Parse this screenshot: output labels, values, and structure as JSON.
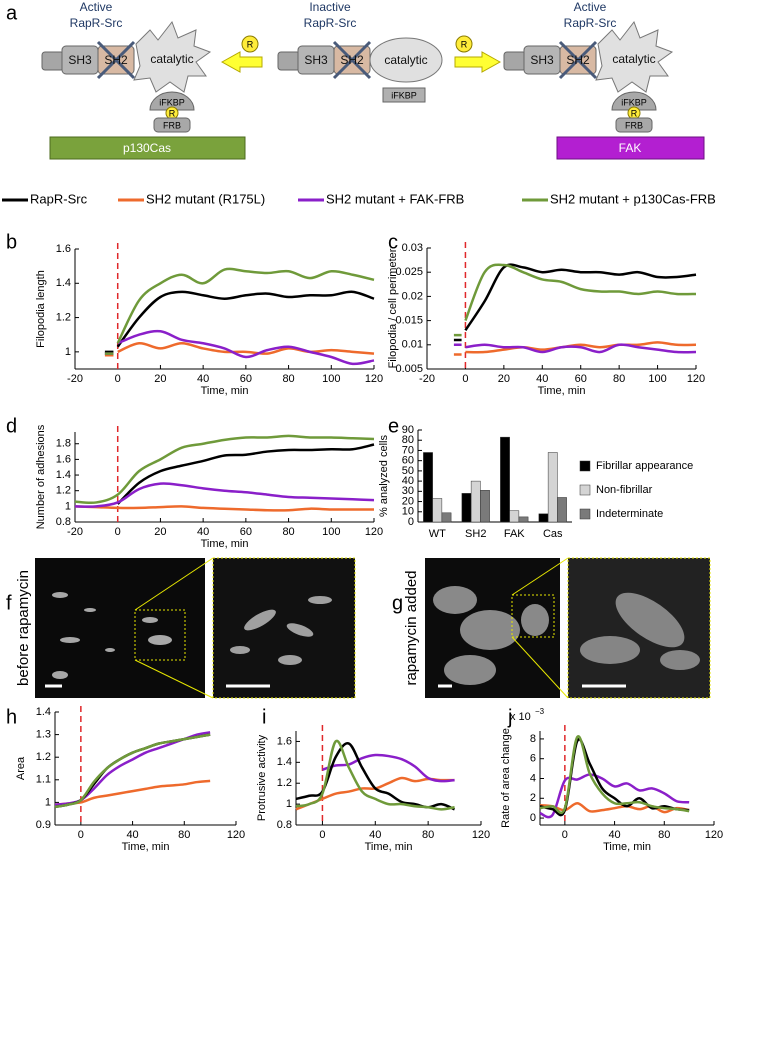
{
  "panels": [
    "a",
    "b",
    "c",
    "d",
    "e",
    "f",
    "g",
    "h",
    "i",
    "j"
  ],
  "diagram": {
    "left": {
      "title": [
        "Active",
        "RapR-Src"
      ],
      "domains": [
        "SH3",
        "SH2",
        "catalytic"
      ],
      "ifkbp": "iFKBP",
      "r": "R",
      "frb": "FRB",
      "target": "p130Cas"
    },
    "arrow_left_r": "R",
    "middle": {
      "title": [
        "Inactive",
        "RapR-Src"
      ],
      "domains": [
        "SH3",
        "SH2",
        "catalytic"
      ],
      "ifkbp": "iFKBP"
    },
    "arrow_right_r": "R",
    "right": {
      "title": [
        "Active",
        "RapR-Src"
      ],
      "domains": [
        "SH3",
        "SH2",
        "catalytic"
      ],
      "ifkbp": "iFKBP",
      "r": "R",
      "frb": "FRB",
      "target": "FAK"
    }
  },
  "legend": [
    {
      "name": "RapR-Src",
      "color": "#000000"
    },
    {
      "name": "SH2 mutant (R175L)",
      "color": "#ee6a2c"
    },
    {
      "name": "SH2 mutant + FAK-FRB",
      "color": "#8a1fc9"
    },
    {
      "name": "SH2 mutant + p130Cas-FRB",
      "color": "#6f9a3a"
    }
  ],
  "images": {
    "f": "before rapamycin",
    "g": "rapamycin added"
  },
  "chart_data": [
    {
      "type": "line",
      "xlabel": "Time, min",
      "ylabel": "Filopodia length",
      "vline": 0,
      "xlim": [
        -20,
        120
      ],
      "xticks": [
        -20,
        0,
        20,
        40,
        60,
        80,
        100,
        120
      ],
      "ylim": [
        0.9,
        1.6
      ],
      "yticks": [
        1,
        1.2,
        1.4,
        1.6
      ],
      "x": [
        -6,
        -2,
        -1,
        0,
        10,
        20,
        30,
        40,
        50,
        60,
        70,
        80,
        90,
        100,
        110,
        120
      ],
      "series": [
        {
          "color": "#000000",
          "values": [
            1.0,
            1.0,
            null,
            1.03,
            1.2,
            1.32,
            1.35,
            1.33,
            1.31,
            1.33,
            1.34,
            1.32,
            1.33,
            1.33,
            1.35,
            1.31
          ]
        },
        {
          "color": "#ee6a2c",
          "values": [
            0.98,
            0.98,
            null,
            1.0,
            1.05,
            1.02,
            1.05,
            1.02,
            1.0,
            1.0,
            0.99,
            1.02,
            1.0,
            1.01,
            1.0,
            0.99
          ]
        },
        {
          "color": "#8a1fc9",
          "values": [
            0.99,
            0.99,
            null,
            1.05,
            1.1,
            1.12,
            1.07,
            1.05,
            1.02,
            0.97,
            1.01,
            1.03,
            1.0,
            0.97,
            0.93,
            0.95
          ]
        },
        {
          "color": "#6f9a3a",
          "values": [
            0.99,
            0.99,
            null,
            1.05,
            1.3,
            1.4,
            1.45,
            1.4,
            1.48,
            1.47,
            1.46,
            1.47,
            1.43,
            1.47,
            1.45,
            1.42
          ]
        }
      ]
    },
    {
      "type": "line",
      "xlabel": "Time, min",
      "ylabel": "Filopodia / cell perimeter",
      "vline": 0,
      "xlim": [
        -20,
        120
      ],
      "xticks": [
        -20,
        0,
        20,
        40,
        60,
        80,
        100,
        120
      ],
      "ylim": [
        0.005,
        0.03
      ],
      "yticks": [
        0.005,
        0.01,
        0.015,
        0.02,
        0.025,
        0.03
      ],
      "x": [
        -6,
        -2,
        -1,
        0,
        10,
        20,
        30,
        40,
        50,
        60,
        70,
        80,
        90,
        100,
        110,
        120
      ],
      "series": [
        {
          "color": "#000000",
          "values": [
            0.011,
            0.011,
            null,
            0.013,
            0.019,
            0.026,
            0.026,
            0.025,
            0.0255,
            0.025,
            0.025,
            0.0245,
            0.025,
            0.024,
            0.024,
            0.0245
          ]
        },
        {
          "color": "#ee6a2c",
          "values": [
            0.008,
            0.008,
            null,
            0.0085,
            0.0085,
            0.009,
            0.0095,
            0.009,
            0.0095,
            0.01,
            0.0095,
            0.01,
            0.01,
            0.0105,
            0.01,
            0.01
          ]
        },
        {
          "color": "#8a1fc9",
          "values": [
            0.01,
            0.01,
            null,
            0.0095,
            0.01,
            0.0095,
            0.0095,
            0.0085,
            0.0095,
            0.0095,
            0.0085,
            0.01,
            0.0095,
            0.009,
            0.0085,
            0.0085
          ]
        },
        {
          "color": "#6f9a3a",
          "values": [
            0.012,
            0.012,
            null,
            0.015,
            0.025,
            0.0265,
            0.025,
            0.0235,
            0.023,
            0.0215,
            0.021,
            0.021,
            0.0205,
            0.021,
            0.0205,
            0.0205
          ]
        }
      ]
    },
    {
      "type": "line",
      "xlabel": "Time, min",
      "ylabel": "Number of adhesions",
      "vline": 0,
      "xlim": [
        -20,
        120
      ],
      "xticks": [
        -20,
        0,
        20,
        40,
        60,
        80,
        100,
        120
      ],
      "ylim": [
        0.8,
        1.95
      ],
      "yticks": [
        0.8,
        1,
        1.2,
        1.4,
        1.6,
        1.8
      ],
      "x": [
        -20,
        -10,
        0,
        10,
        20,
        30,
        40,
        50,
        60,
        70,
        80,
        90,
        100,
        110,
        120
      ],
      "series": [
        {
          "color": "#000000",
          "values": [
            null,
            null,
            1.03,
            1.3,
            1.45,
            1.52,
            1.58,
            1.65,
            1.66,
            1.7,
            1.72,
            1.72,
            1.73,
            1.73,
            1.79
          ]
        },
        {
          "color": "#ee6a2c",
          "values": [
            1.0,
            0.99,
            0.98,
            0.98,
            0.99,
            1.0,
            0.98,
            0.97,
            0.96,
            0.95,
            0.95,
            0.97,
            0.96,
            0.96,
            0.96
          ]
        },
        {
          "color": "#8a1fc9",
          "values": [
            1.0,
            1.0,
            1.05,
            1.22,
            1.29,
            1.27,
            1.23,
            1.2,
            1.18,
            1.15,
            1.12,
            1.11,
            1.1,
            1.09,
            1.08
          ]
        },
        {
          "color": "#6f9a3a",
          "values": [
            1.06,
            1.05,
            1.15,
            1.45,
            1.6,
            1.75,
            1.8,
            1.85,
            1.88,
            1.88,
            1.9,
            1.88,
            1.88,
            1.87,
            1.86
          ]
        }
      ]
    },
    {
      "type": "bar",
      "ylabel": "% analyzed cells",
      "categories": [
        "WT",
        "SH2",
        "FAK",
        "Cas"
      ],
      "ylim": [
        0,
        90
      ],
      "yticks": [
        0,
        10,
        20,
        30,
        40,
        50,
        60,
        70,
        80,
        90
      ],
      "series": [
        {
          "name": "Fibrillar appearance",
          "color": "#000000",
          "values": [
            68,
            28,
            83,
            8
          ]
        },
        {
          "name": "Non-fibrillar",
          "color": "#d4d4d4",
          "values": [
            23,
            40,
            11,
            68
          ]
        },
        {
          "name": "Indeterminate",
          "color": "#7a7a7a",
          "values": [
            9,
            31,
            5,
            24
          ]
        }
      ]
    },
    {
      "type": "line",
      "xlabel": "Time, min",
      "ylabel": "Area",
      "vline": 0,
      "xlim": [
        -20,
        120
      ],
      "xticks": [
        0,
        40,
        80,
        120
      ],
      "ylim": [
        0.9,
        1.4
      ],
      "yticks": [
        0.9,
        1,
        1.1,
        1.2,
        1.3,
        1.4
      ],
      "x": [
        -20,
        -10,
        0,
        10,
        20,
        30,
        40,
        50,
        60,
        70,
        80,
        90,
        100
      ],
      "series": [
        {
          "color": "#ee6a2c",
          "values": [
            0.99,
            0.995,
            1.0,
            1.02,
            1.03,
            1.04,
            1.05,
            1.06,
            1.07,
            1.075,
            1.08,
            1.09,
            1.095
          ]
        },
        {
          "color": "#8a1fc9",
          "values": [
            0.99,
            0.995,
            1.01,
            1.06,
            1.12,
            1.16,
            1.19,
            1.22,
            1.24,
            1.26,
            1.28,
            1.3,
            1.31
          ]
        },
        {
          "color": "#000000",
          "values": [
            0.98,
            0.99,
            1.01,
            1.08,
            1.15,
            1.19,
            1.22,
            1.24,
            1.26,
            1.27,
            1.28,
            1.29,
            1.3
          ]
        },
        {
          "color": "#6f9a3a",
          "values": [
            0.98,
            0.99,
            1.01,
            1.09,
            1.15,
            1.19,
            1.22,
            1.24,
            1.26,
            1.27,
            1.28,
            1.29,
            1.3
          ]
        }
      ]
    },
    {
      "type": "line",
      "xlabel": "Time, min",
      "ylabel": "Protrusive activity",
      "vline": 0,
      "xlim": [
        -20,
        120
      ],
      "xticks": [
        0,
        40,
        80,
        120
      ],
      "ylim": [
        0.8,
        1.7
      ],
      "yticks": [
        0.8,
        1,
        1.2,
        1.4,
        1.6
      ],
      "x": [
        -20,
        -10,
        0,
        10,
        20,
        30,
        40,
        50,
        60,
        70,
        80,
        90,
        100
      ],
      "series": [
        {
          "color": "#ee6a2c",
          "values": [
            0.95,
            1.0,
            1.05,
            1.1,
            1.12,
            1.15,
            1.15,
            1.2,
            1.25,
            1.22,
            1.24,
            1.23,
            1.23
          ]
        },
        {
          "color": "#8a1fc9",
          "values": [
            null,
            null,
            1.33,
            1.37,
            1.38,
            1.44,
            1.47,
            1.46,
            1.43,
            1.36,
            1.25,
            1.22,
            1.23
          ]
        },
        {
          "color": "#000000",
          "values": [
            1.05,
            1.08,
            1.12,
            1.45,
            1.58,
            1.35,
            1.15,
            1.1,
            1.02,
            1.0,
            0.97,
            1.0,
            0.95
          ]
        },
        {
          "color": "#6f9a3a",
          "values": [
            0.98,
            1.0,
            1.1,
            1.6,
            1.35,
            1.12,
            1.05,
            1.0,
            1.0,
            0.98,
            0.97,
            0.95,
            0.97
          ]
        }
      ]
    },
    {
      "type": "line",
      "xlabel": "Time, min",
      "ylabel": "Rate of area change",
      "vline": 0,
      "y_scale_label": {
        "base": "x 10",
        "exponent": "−3"
      },
      "xlim": [
        -20,
        120
      ],
      "xticks": [
        0,
        40,
        80,
        120
      ],
      "ylim": [
        -0.7,
        8.8
      ],
      "yticks": [
        0,
        2,
        4,
        6,
        8
      ],
      "x": [
        -20,
        -10,
        0,
        10,
        20,
        30,
        40,
        50,
        60,
        70,
        80,
        90,
        100
      ],
      "series": [
        {
          "color": "#ee6a2c",
          "values": [
            1.3,
            1.2,
            0.8,
            1.5,
            0.7,
            0.8,
            1.0,
            1.2,
            0.9,
            1.2,
            0.6,
            1.0,
            0.8
          ]
        },
        {
          "color": "#8a1fc9",
          "values": [
            0.5,
            0.3,
            3.8,
            3.9,
            4.4,
            4.0,
            3.2,
            3.5,
            2.8,
            3.0,
            2.5,
            1.7,
            1.6
          ]
        },
        {
          "color": "#000000",
          "values": [
            1.2,
            0.9,
            0.8,
            7.8,
            5.5,
            3.0,
            2.0,
            1.2,
            2.0,
            1.0,
            1.2,
            0.9,
            0.8
          ]
        },
        {
          "color": "#6f9a3a",
          "values": [
            1.0,
            1.2,
            1.0,
            8.2,
            4.5,
            2.5,
            1.5,
            1.5,
            1.6,
            1.2,
            1.0,
            0.9,
            0.7
          ]
        }
      ]
    }
  ]
}
